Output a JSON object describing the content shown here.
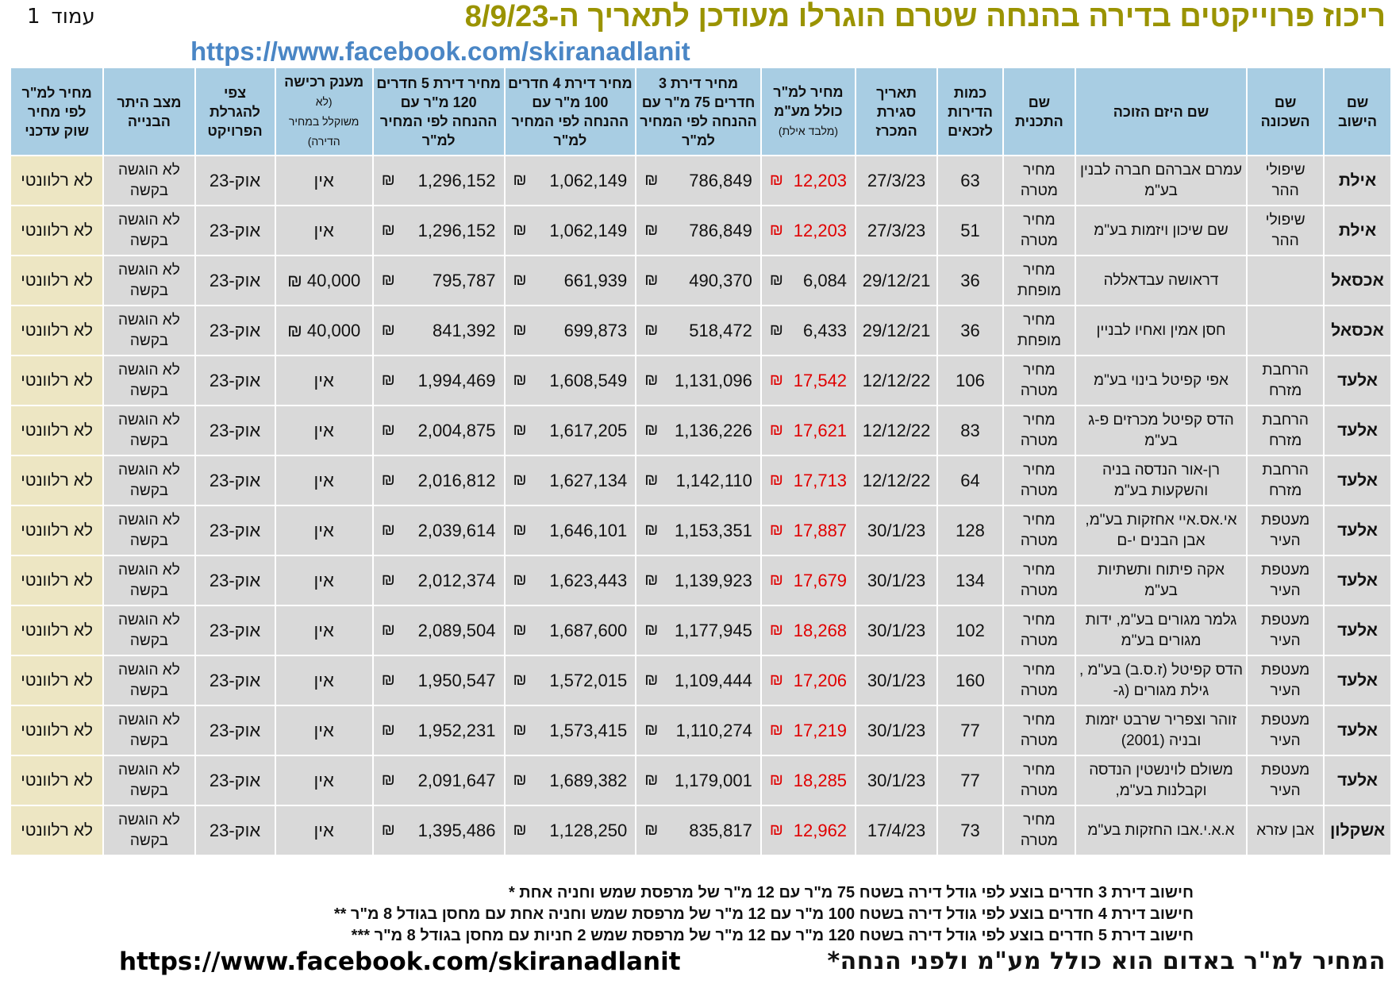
{
  "header": {
    "page_word": "עמוד",
    "page_number": "1",
    "title": "ריכוז פרוייקטים בדירה בהנחה שטרם הוגרלו מעודכן לתאריך ה-8/9/23",
    "facebook_top": "https://www.facebook.com/skiranadlanit"
  },
  "table": {
    "columns": {
      "city": "שם הישוב",
      "neighborhood": "שם השכונה",
      "developer": "שם היזם הזוכה",
      "program": "שם התכנית",
      "units": "כמות הדירות לזכאים",
      "close_date": "תאריך סגירת המכרז",
      "price_sqm": "מחיר למ\"ר כולל מע\"מ",
      "price_sqm_sub": "(מלבד אילת)",
      "price3": "מחיר דירת 3 חדרים 75 מ\"ר עם ההנחה לפי המחיר למ\"ר",
      "price4": "מחיר דירת 4 חדרים 100 מ\"ר עם ההנחה לפי המחיר למ\"ר",
      "price5": "מחיר דירת 5 חדרים 120 מ\"ר עם ההנחה לפי המחיר למ\"ר",
      "grant": "מענק רכישה",
      "grant_sub1": "(לא",
      "grant_sub2": "משוקלל במחיר הדירה)",
      "lottery": "צפי להגרלת הפרויקט",
      "permit": "מצב היתר הבנייה",
      "market": "מחיר למ\"ר לפי מחיר שוק עדכני"
    },
    "currency": "₪",
    "rows": [
      {
        "city": "אילת",
        "neighborhood": "שיפולי ההר",
        "developer": "עמרם אברהם חברה לבנין בע\"מ",
        "program": "מחיר מטרה",
        "units": "63",
        "close_date": "27/3/23",
        "price_sqm": "12,203",
        "red": true,
        "price3": "786,849",
        "price4": "1,062,149",
        "price5": "1,296,152",
        "grant": "אין",
        "lottery": "אוק-23",
        "permit": "לא הוגשה בקשה",
        "market": "לא רלוונטי"
      },
      {
        "city": "אילת",
        "neighborhood": "שיפולי ההר",
        "developer": "שם שיכון ויזמות בע\"מ",
        "program": "מחיר מטרה",
        "units": "51",
        "close_date": "27/3/23",
        "price_sqm": "12,203",
        "red": true,
        "price3": "786,849",
        "price4": "1,062,149",
        "price5": "1,296,152",
        "grant": "אין",
        "lottery": "אוק-23",
        "permit": "לא הוגשה בקשה",
        "market": "לא רלוונטי"
      },
      {
        "city": "אכסאל",
        "neighborhood": "",
        "developer": "דראושה עבדאללה",
        "program": "מחיר מופחת",
        "units": "36",
        "close_date": "29/12/21",
        "price_sqm": "6,084",
        "red": false,
        "price3": "490,370",
        "price4": "661,939",
        "price5": "795,787",
        "grant": "40,000 ₪",
        "lottery": "אוק-23",
        "permit": "לא הוגשה בקשה",
        "market": "לא רלוונטי"
      },
      {
        "city": "אכסאל",
        "neighborhood": "",
        "developer": "חסן אמין ואחיו לבניין",
        "program": "מחיר מופחת",
        "units": "36",
        "close_date": "29/12/21",
        "price_sqm": "6,433",
        "red": false,
        "price3": "518,472",
        "price4": "699,873",
        "price5": "841,392",
        "grant": "40,000 ₪",
        "lottery": "אוק-23",
        "permit": "לא הוגשה בקשה",
        "market": "לא רלוונטי"
      },
      {
        "city": "אלעד",
        "neighborhood": "הרחבת מזרח",
        "developer": "אפי קפיטל בינוי בע\"מ",
        "program": "מחיר מטרה",
        "units": "106",
        "close_date": "12/12/22",
        "price_sqm": "17,542",
        "red": true,
        "price3": "1,131,096",
        "price4": "1,608,549",
        "price5": "1,994,469",
        "grant": "אין",
        "lottery": "אוק-23",
        "permit": "לא הוגשה בקשה",
        "market": "לא רלוונטי"
      },
      {
        "city": "אלעד",
        "neighborhood": "הרחבת מזרח",
        "developer": "הדס קפיטל מכרזים פ-ג בע\"מ",
        "program": "מחיר מטרה",
        "units": "83",
        "close_date": "12/12/22",
        "price_sqm": "17,621",
        "red": true,
        "price3": "1,136,226",
        "price4": "1,617,205",
        "price5": "2,004,875",
        "grant": "אין",
        "lottery": "אוק-23",
        "permit": "לא הוגשה בקשה",
        "market": "לא רלוונטי"
      },
      {
        "city": "אלעד",
        "neighborhood": "הרחבת מזרח",
        "developer": "רן-אור הנדסה בניה והשקעות בע\"מ",
        "program": "מחיר מטרה",
        "units": "64",
        "close_date": "12/12/22",
        "price_sqm": "17,713",
        "red": true,
        "price3": "1,142,110",
        "price4": "1,627,134",
        "price5": "2,016,812",
        "grant": "אין",
        "lottery": "אוק-23",
        "permit": "לא הוגשה בקשה",
        "market": "לא רלוונטי"
      },
      {
        "city": "אלעד",
        "neighborhood": "מעטפת העיר",
        "developer": "אי.אס.איי אחזקות בע\"מ, אבן הבנים י-ם",
        "program": "מחיר מטרה",
        "units": "128",
        "close_date": "30/1/23",
        "price_sqm": "17,887",
        "red": true,
        "price3": "1,153,351",
        "price4": "1,646,101",
        "price5": "2,039,614",
        "grant": "אין",
        "lottery": "אוק-23",
        "permit": "לא הוגשה בקשה",
        "market": "לא רלוונטי"
      },
      {
        "city": "אלעד",
        "neighborhood": "מעטפת העיר",
        "developer": "אקה פיתוח ותשתיות בע\"מ",
        "program": "מחיר מטרה",
        "units": "134",
        "close_date": "30/1/23",
        "price_sqm": "17,679",
        "red": true,
        "price3": "1,139,923",
        "price4": "1,623,443",
        "price5": "2,012,374",
        "grant": "אין",
        "lottery": "אוק-23",
        "permit": "לא הוגשה בקשה",
        "market": "לא רלוונטי"
      },
      {
        "city": "אלעד",
        "neighborhood": "מעטפת העיר",
        "developer": "גלמר מגורים בע\"מ, ידות מגורים בע\"מ",
        "program": "מחיר מטרה",
        "units": "102",
        "close_date": "30/1/23",
        "price_sqm": "18,268",
        "red": true,
        "price3": "1,177,945",
        "price4": "1,687,600",
        "price5": "2,089,504",
        "grant": "אין",
        "lottery": "אוק-23",
        "permit": "לא הוגשה בקשה",
        "market": "לא רלוונטי"
      },
      {
        "city": "אלעד",
        "neighborhood": "מעטפת העיר",
        "developer": "הדס קפיטל (ז.ס.ב) בע\"מ , גילת מגורים (ג-",
        "program": "מחיר מטרה",
        "units": "160",
        "close_date": "30/1/23",
        "price_sqm": "17,206",
        "red": true,
        "price3": "1,109,444",
        "price4": "1,572,015",
        "price5": "1,950,547",
        "grant": "אין",
        "lottery": "אוק-23",
        "permit": "לא הוגשה בקשה",
        "market": "לא רלוונטי"
      },
      {
        "city": "אלעד",
        "neighborhood": "מעטפת העיר",
        "developer": "זוהר וצפריר שרבט יזמות ובניה (2001)",
        "program": "מחיר מטרה",
        "units": "77",
        "close_date": "30/1/23",
        "price_sqm": "17,219",
        "red": true,
        "price3": "1,110,274",
        "price4": "1,573,415",
        "price5": "1,952,231",
        "grant": "אין",
        "lottery": "אוק-23",
        "permit": "לא הוגשה בקשה",
        "market": "לא רלוונטי"
      },
      {
        "city": "אלעד",
        "neighborhood": "מעטפת העיר",
        "developer": "משולם לוינשטין הנדסה וקבלנות בע\"מ,",
        "program": "מחיר מטרה",
        "units": "77",
        "close_date": "30/1/23",
        "price_sqm": "18,285",
        "red": true,
        "price3": "1,179,001",
        "price4": "1,689,382",
        "price5": "2,091,647",
        "grant": "אין",
        "lottery": "אוק-23",
        "permit": "לא הוגשה בקשה",
        "market": "לא רלוונטי"
      },
      {
        "city": "אשקלון",
        "neighborhood": "אבן עזרא",
        "developer": "א.א.י.אבו החזקות בע\"מ",
        "program": "מחיר מטרה",
        "units": "73",
        "close_date": "17/4/23",
        "price_sqm": "12,962",
        "red": true,
        "price3": "835,817",
        "price4": "1,128,250",
        "price5": "1,395,486",
        "grant": "אין",
        "lottery": "אוק-23",
        "permit": "לא הוגשה בקשה",
        "market": "לא רלוונטי"
      }
    ]
  },
  "notes": {
    "line1": "חישוב דירת 3 חדרים בוצע לפי גודל דירה בשטח 75 מ\"ר עם 12 מ\"ר של מרפסת שמש וחניה אחת *",
    "line2": "חישוב דירת 4 חדרים בוצע לפי גודל דירה בשטח 100 מ\"ר עם 12 מ\"ר של מרפסת שמש וחניה אחת עם מחסן בגודל 8 מ\"ר **",
    "line3": "חישוב דירת 5 חדרים בוצע לפי גודל דירה בשטח 120 מ\"ר עם 12 מ\"ר של מרפסת שמש 2 חניות עם מחסן בגודל 8 מ\"ר ***",
    "red_note": "המחיר למ\"ר באדום הוא כולל מע\"מ ולפני הנחה*",
    "facebook_bottom": "https://www.facebook.com/skiranadlanit"
  },
  "colors": {
    "header_bg": "#a8cde3",
    "row_bg": "#d9d9d9",
    "market_bg": "#ede6c3",
    "title": "#9a9300",
    "link": "#4a86c5",
    "red_price": "#e00000"
  }
}
